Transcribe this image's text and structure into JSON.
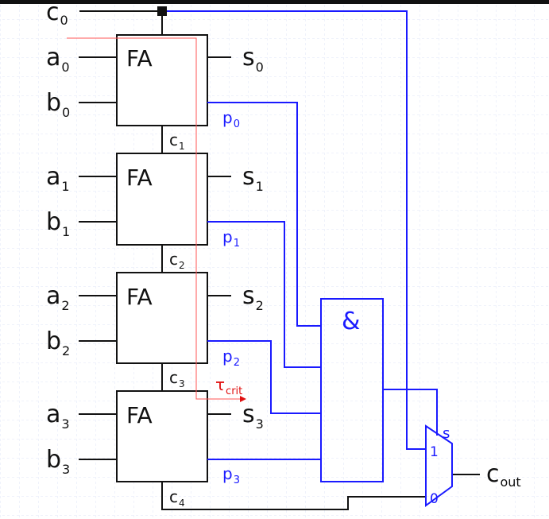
{
  "diagram": {
    "adder_block_label": "FA",
    "and_gate_label": "&",
    "inputs": {
      "carry_in": {
        "base": "c",
        "sub": "0"
      },
      "a": [
        {
          "base": "a",
          "sub": "0"
        },
        {
          "base": "a",
          "sub": "1"
        },
        {
          "base": "a",
          "sub": "2"
        },
        {
          "base": "a",
          "sub": "3"
        }
      ],
      "b": [
        {
          "base": "b",
          "sub": "0"
        },
        {
          "base": "b",
          "sub": "1"
        },
        {
          "base": "b",
          "sub": "2"
        },
        {
          "base": "b",
          "sub": "3"
        }
      ]
    },
    "sum_outputs": [
      {
        "base": "s",
        "sub": "0"
      },
      {
        "base": "s",
        "sub": "1"
      },
      {
        "base": "s",
        "sub": "2"
      },
      {
        "base": "s",
        "sub": "3"
      }
    ],
    "propagate_signals": [
      {
        "base": "p",
        "sub": "0"
      },
      {
        "base": "p",
        "sub": "1"
      },
      {
        "base": "p",
        "sub": "2"
      },
      {
        "base": "p",
        "sub": "3"
      }
    ],
    "internal_carries": [
      {
        "base": "c",
        "sub": "1"
      },
      {
        "base": "c",
        "sub": "2"
      },
      {
        "base": "c",
        "sub": "3"
      },
      {
        "base": "c",
        "sub": "4"
      }
    ],
    "critical_path": {
      "base": "τ",
      "sub": "crit"
    },
    "mux": {
      "select": "s",
      "input_1": "1",
      "input_0": "0"
    },
    "carry_out": {
      "base": "c",
      "sub": "out"
    },
    "colors": {
      "wire": "#111111",
      "bypass_wire": "#1a1aff",
      "critical_path": "#e01010",
      "background_grid": "#dfe6f7"
    }
  }
}
